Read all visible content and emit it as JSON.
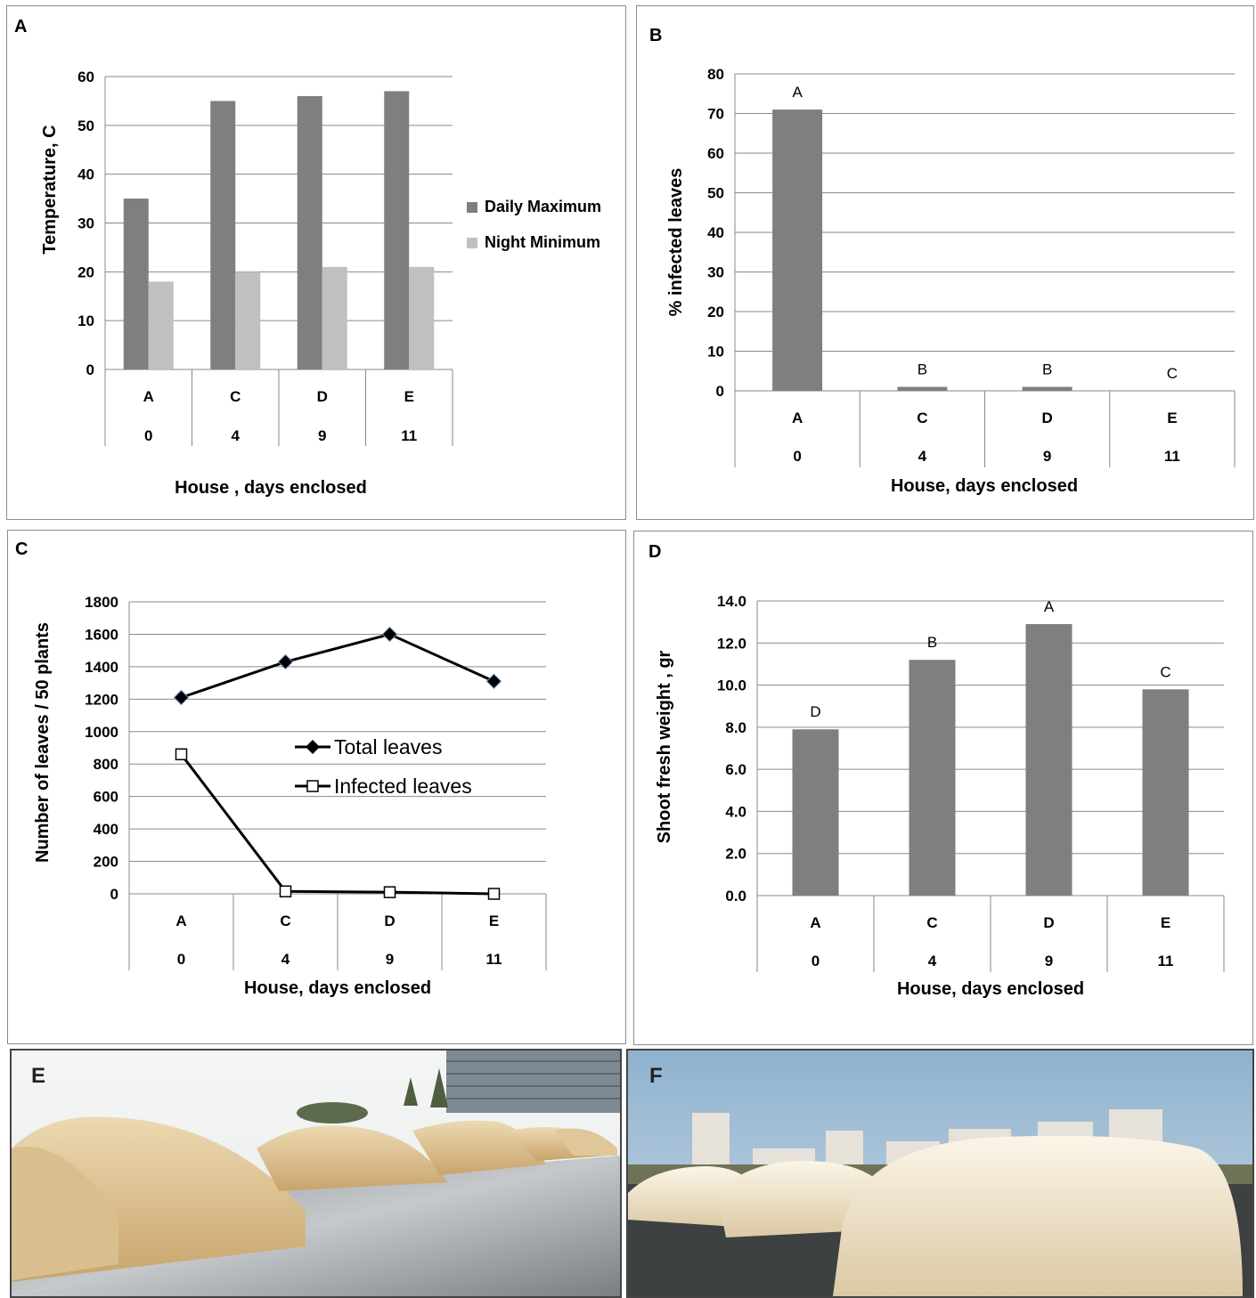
{
  "panels": {
    "A": {
      "letter": "A",
      "chart_data": {
        "type": "bar",
        "categories": [
          "A",
          "C",
          "D",
          "E"
        ],
        "categories_second_row": [
          "0",
          "4",
          "9",
          "11"
        ],
        "series": [
          {
            "name": "Daily Maximum",
            "color": "#7f7f7f",
            "values": [
              35,
              55,
              56,
              57
            ]
          },
          {
            "name": "Night Minimum",
            "color": "#c0c0c0",
            "values": [
              18,
              20,
              21,
              21
            ]
          }
        ],
        "xlabel": "House , days enclosed",
        "ylabel": "Temperature, C",
        "ylim": [
          0,
          60
        ],
        "yticks": [
          "0",
          "10",
          "20",
          "30",
          "40",
          "50",
          "60"
        ],
        "grid": true,
        "legend": "right"
      }
    },
    "B": {
      "letter": "B",
      "chart_data": {
        "type": "bar",
        "categories": [
          "A",
          "C",
          "D",
          "E"
        ],
        "categories_second_row": [
          "0",
          "4",
          "9",
          "11"
        ],
        "series": [
          {
            "color": "#7f7f7f",
            "values": [
              71,
              1,
              1,
              0
            ]
          }
        ],
        "data_labels": [
          "A",
          "B",
          "B",
          "C"
        ],
        "xlabel": "House,  days enclosed",
        "ylabel": "% infected leaves",
        "ylim": [
          0,
          80
        ],
        "yticks": [
          "0",
          "10",
          "20",
          "30",
          "40",
          "50",
          "60",
          "70",
          "80"
        ],
        "grid": true
      }
    },
    "C": {
      "letter": "C",
      "chart_data": {
        "type": "line",
        "categories": [
          "A",
          "C",
          "D",
          "E"
        ],
        "categories_second_row": [
          "0",
          "4",
          "9",
          "11"
        ],
        "series": [
          {
            "name": "Total leaves",
            "marker": "diamond",
            "values": [
              1210,
              1430,
              1600,
              1310
            ]
          },
          {
            "name": "Infected leaves",
            "marker": "square",
            "values": [
              860,
              15,
              10,
              0
            ]
          }
        ],
        "xlabel": "House, days enclosed",
        "ylabel": "Number of leaves / 50 plants",
        "ylim": [
          0,
          1800
        ],
        "yticks": [
          "0",
          "200",
          "400",
          "600",
          "800",
          "1000",
          "1200",
          "1400",
          "1600",
          "1800"
        ],
        "grid": true,
        "legend": "center"
      }
    },
    "D": {
      "letter": "D",
      "chart_data": {
        "type": "bar",
        "categories": [
          "A",
          "C",
          "D",
          "E"
        ],
        "categories_second_row": [
          "0",
          "4",
          "9",
          "11"
        ],
        "series": [
          {
            "color": "#7f7f7f",
            "values": [
              7.9,
              11.2,
              12.9,
              9.8
            ]
          }
        ],
        "data_labels": [
          "D",
          "B",
          "A",
          "C"
        ],
        "xlabel": "House, days enclosed",
        "ylabel": "Shoot  fresh weight , gr",
        "ylim": [
          0,
          14
        ],
        "yticks": [
          "0.0",
          "2.0",
          "4.0",
          "6.0",
          "8.0",
          "10.0",
          "12.0",
          "14.0"
        ],
        "grid": true
      }
    },
    "E": {
      "letter": "E"
    },
    "F": {
      "letter": "F"
    }
  }
}
